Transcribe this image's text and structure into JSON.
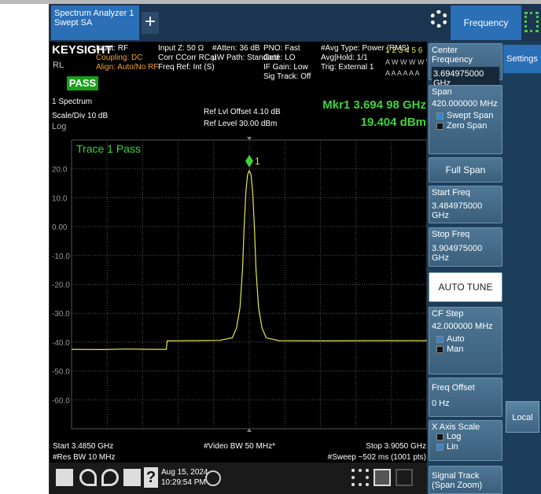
{
  "tabs": {
    "active_line1": "Spectrum Analyzer 1",
    "active_line2": "Swept SA",
    "add": "+",
    "menu": "Frequency"
  },
  "info_bar": {
    "brand": "KEYSIGHT",
    "rl": "RL",
    "pass": "PASS",
    "col1": [
      "Input: RF",
      "Coupling: DC",
      "Align: Auto/No RF"
    ],
    "col2": [
      "Input Z: 50 Ω",
      "Corr CCorr RCal",
      "Freq Ref: Int (S)"
    ],
    "col3": [
      "#Atten: 36 dB",
      "µW Path: Standard"
    ],
    "col4": [
      "PNO: Fast",
      "Gate: LO",
      "IF Gain: Low",
      "Sig Track: Off"
    ],
    "col5": [
      "#Avg Type: Power (RMS)",
      "Avg|Hold: 1/1",
      "Trig: External 1"
    ],
    "traces": [
      "1 2 3 4 5 6",
      "A W W W W W",
      "A A A A A A"
    ]
  },
  "graph": {
    "window": "1 Spectrum",
    "scale": "Scale/Div 10 dB",
    "log": "Log",
    "ref_offset": "Ref Lvl Offset 4.10 dB",
    "ref_level": "Ref Level 30.00 dBm",
    "marker_freq": "Mkr1  3.694 98 GHz",
    "marker_amp": "19.404 dBm",
    "marker_label": "1",
    "trace_status": "Trace 1 Pass",
    "start": "Start 3.4850 GHz",
    "res_bw": "#Res BW 10 MHz",
    "video_bw": "#Video BW 50 MHz*",
    "stop": "Stop 3.9050 GHz",
    "sweep": "#Sweep ~502 ms (1001 pts)",
    "xlim": [
      3.485,
      3.905
    ],
    "ylim": [
      -70,
      30
    ],
    "yticks": [
      {
        "value": 20,
        "label": "20.0"
      },
      {
        "value": 10,
        "label": "10.0"
      },
      {
        "value": 0,
        "label": "0.00"
      },
      {
        "value": -10,
        "label": "-10.0"
      },
      {
        "value": -20,
        "label": "-20.0"
      },
      {
        "value": -30,
        "label": "-30.0"
      },
      {
        "value": -40,
        "label": "-40.0"
      },
      {
        "value": -50,
        "label": "-50.0"
      },
      {
        "value": -60,
        "label": "-60.0"
      }
    ],
    "trace": {
      "color": "#e6e64a",
      "x": [
        3.485,
        3.52,
        3.55,
        3.58,
        3.597,
        3.598,
        3.63,
        3.66,
        3.675,
        3.68,
        3.684,
        3.687,
        3.689,
        3.691,
        3.693,
        3.695,
        3.697,
        3.699,
        3.701,
        3.703,
        3.706,
        3.71,
        3.715,
        3.73,
        3.78,
        3.84,
        3.905
      ],
      "values": [
        -42.5,
        -42.6,
        -42.4,
        -42.5,
        -42.5,
        -39.6,
        -39.5,
        -39.4,
        -38.5,
        -35,
        -28,
        -15,
        0,
        12,
        18,
        19.4,
        18,
        12,
        0,
        -15,
        -28,
        -35,
        -38.5,
        -39.5,
        -39.6,
        -39.5,
        -39.5
      ]
    }
  },
  "softkeys": {
    "center_freq": {
      "label": "Center Frequency",
      "value": "3.694975000 GHz"
    },
    "span": {
      "label": "Span",
      "value": "420.000000 MHz",
      "opt1": "Swept Span",
      "opt2": "Zero Span"
    },
    "full_span": "Full Span",
    "start_freq": {
      "label": "Start Freq",
      "value": "3.484975000 GHz"
    },
    "stop_freq": {
      "label": "Stop Freq",
      "value": "3.904975000 GHz"
    },
    "auto_tune": "AUTO TUNE",
    "cf_step": {
      "label": "CF Step",
      "value": "42.000000 MHz",
      "opt1": "Auto",
      "opt2": "Man"
    },
    "freq_offset": {
      "label": "Freq Offset",
      "value": "0 Hz"
    },
    "x_axis_scale": {
      "label": "X Axis Scale",
      "opt1": "Log",
      "opt2": "Lin"
    },
    "signal_track": {
      "label": "Signal Track",
      "sub": "(Span Zoom)"
    }
  },
  "side": {
    "settings": "Settings",
    "local": "Local"
  },
  "taskbar": {
    "date": "Aug 15, 2024",
    "time": "10:29:54 PM",
    "help": "?"
  }
}
